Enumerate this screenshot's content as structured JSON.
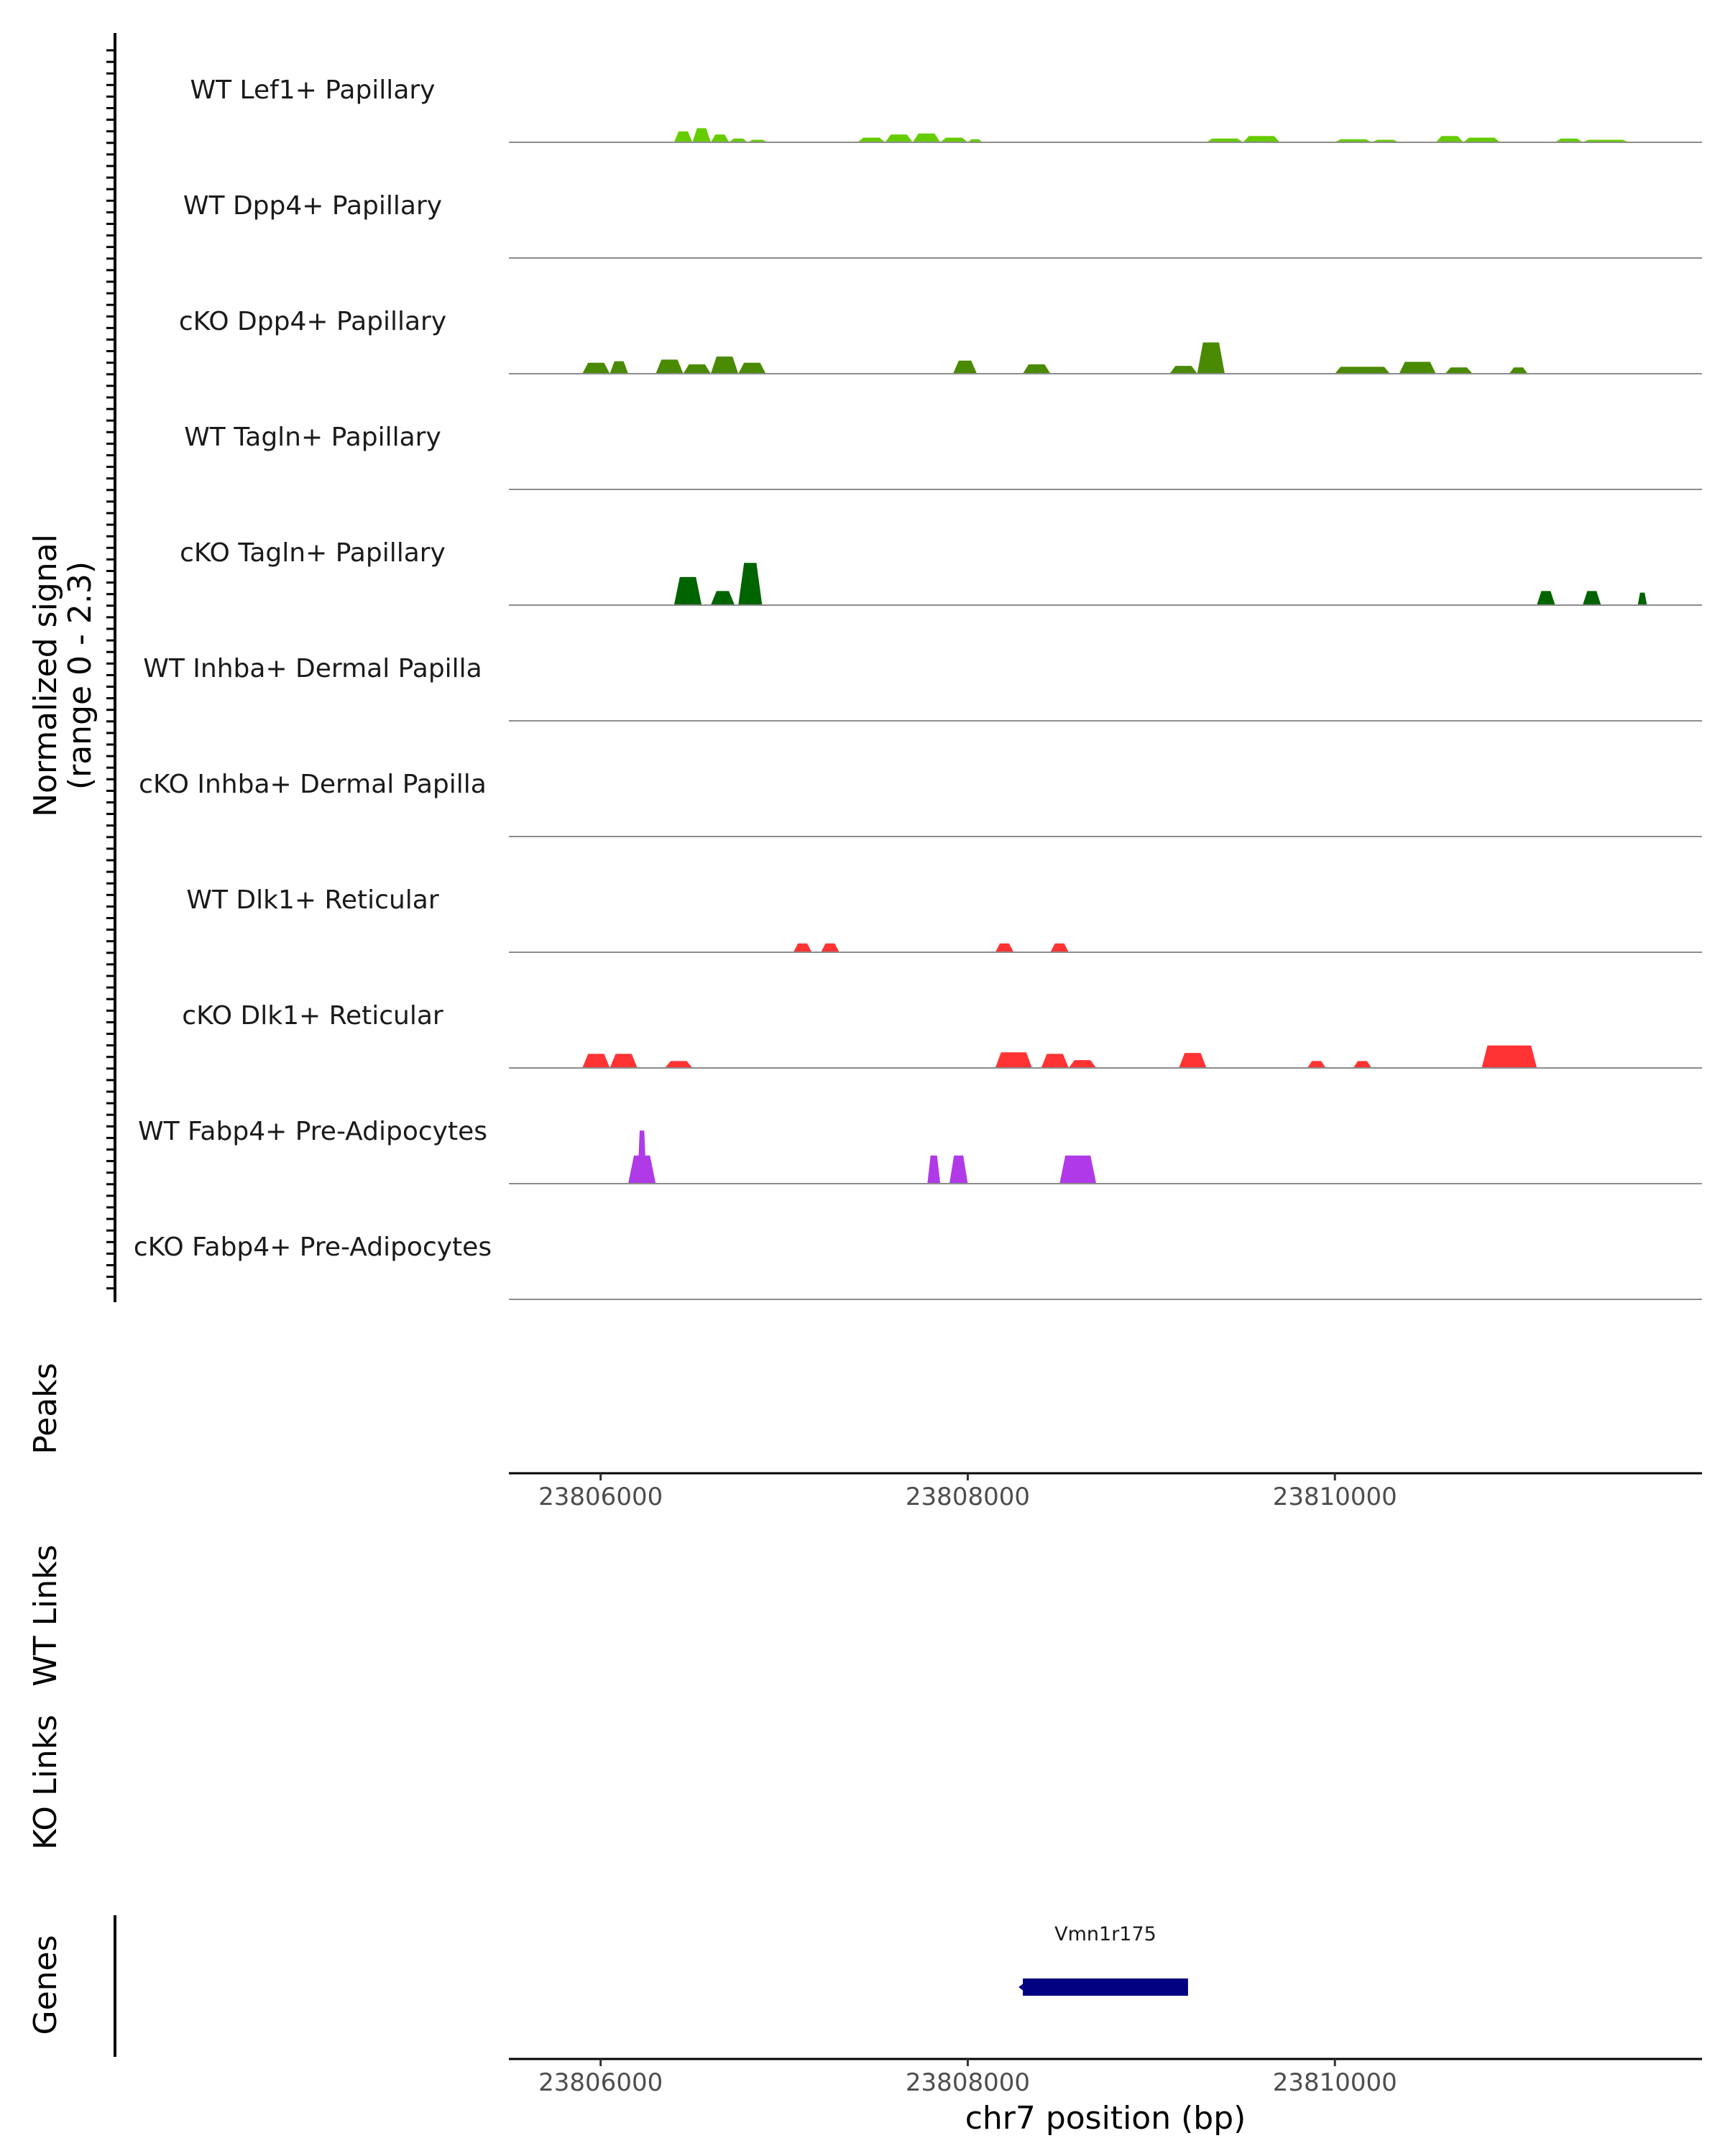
{
  "chart_data": {
    "type": "area",
    "chromosome": "chr7",
    "xlabel": "chr7 position (bp)",
    "xlim": [
      23805500,
      23812000
    ],
    "x_ticks": [
      23806000,
      23808000,
      23810000
    ],
    "x_tick_labels": [
      "23806000",
      "23808000",
      "23810000"
    ],
    "signal_axis_label": "Normalized signal",
    "signal_axis_sublabel": "(range 0 - 2.3)",
    "ylim": [
      0,
      2.3
    ],
    "tracks": [
      {
        "name": "WT Lef1+ Papillary",
        "color": "#66cc00",
        "blocks": [
          {
            "start": 23806400,
            "end": 23806500,
            "value": 0.35
          },
          {
            "start": 23806500,
            "end": 23806600,
            "value": 0.45
          },
          {
            "start": 23806600,
            "end": 23806700,
            "value": 0.25
          },
          {
            "start": 23806700,
            "end": 23806800,
            "value": 0.12
          },
          {
            "start": 23806800,
            "end": 23806910,
            "value": 0.08
          },
          {
            "start": 23807400,
            "end": 23807550,
            "value": 0.15
          },
          {
            "start": 23807550,
            "end": 23807700,
            "value": 0.25
          },
          {
            "start": 23807700,
            "end": 23807850,
            "value": 0.28
          },
          {
            "start": 23807850,
            "end": 23808000,
            "value": 0.15
          },
          {
            "start": 23808000,
            "end": 23808080,
            "value": 0.1
          },
          {
            "start": 23809300,
            "end": 23809500,
            "value": 0.12
          },
          {
            "start": 23809500,
            "end": 23809700,
            "value": 0.2
          },
          {
            "start": 23810000,
            "end": 23810200,
            "value": 0.1
          },
          {
            "start": 23810200,
            "end": 23810350,
            "value": 0.08
          },
          {
            "start": 23810550,
            "end": 23810700,
            "value": 0.2
          },
          {
            "start": 23810700,
            "end": 23810900,
            "value": 0.15
          },
          {
            "start": 23811200,
            "end": 23811350,
            "value": 0.12
          },
          {
            "start": 23811350,
            "end": 23811600,
            "value": 0.08
          }
        ]
      },
      {
        "name": "WT Dpp4+ Papillary",
        "color": "#4a8a00",
        "blocks": []
      },
      {
        "name": "cKO Dpp4+ Papillary",
        "color": "#4a8a00",
        "blocks": [
          {
            "start": 23805900,
            "end": 23806050,
            "value": 0.35
          },
          {
            "start": 23806050,
            "end": 23806150,
            "value": 0.4
          },
          {
            "start": 23806300,
            "end": 23806450,
            "value": 0.45
          },
          {
            "start": 23806450,
            "end": 23806600,
            "value": 0.3
          },
          {
            "start": 23806600,
            "end": 23806750,
            "value": 0.55
          },
          {
            "start": 23806750,
            "end": 23806900,
            "value": 0.35
          },
          {
            "start": 23807920,
            "end": 23808050,
            "value": 0.42
          },
          {
            "start": 23808300,
            "end": 23808450,
            "value": 0.3
          },
          {
            "start": 23809100,
            "end": 23809250,
            "value": 0.25
          },
          {
            "start": 23809250,
            "end": 23809400,
            "value": 1.0
          },
          {
            "start": 23810000,
            "end": 23810300,
            "value": 0.22
          },
          {
            "start": 23810350,
            "end": 23810550,
            "value": 0.38
          },
          {
            "start": 23810600,
            "end": 23810750,
            "value": 0.2
          },
          {
            "start": 23810950,
            "end": 23811050,
            "value": 0.2
          }
        ]
      },
      {
        "name": "WT Tagln+ Papillary",
        "color": "#006400",
        "blocks": []
      },
      {
        "name": "cKO Tagln+ Papillary",
        "color": "#006400",
        "blocks": [
          {
            "start": 23806400,
            "end": 23806550,
            "value": 0.9
          },
          {
            "start": 23806600,
            "end": 23806730,
            "value": 0.45
          },
          {
            "start": 23806750,
            "end": 23806880,
            "value": 1.35
          },
          {
            "start": 23811100,
            "end": 23811200,
            "value": 0.45
          },
          {
            "start": 23811350,
            "end": 23811450,
            "value": 0.45
          },
          {
            "start": 23811650,
            "end": 23811700,
            "value": 0.4
          }
        ]
      },
      {
        "name": "WT Inhba+ Dermal Papilla",
        "color": "#8b0000",
        "blocks": []
      },
      {
        "name": "cKO Inhba+ Dermal Papilla",
        "color": "#8b0000",
        "blocks": []
      },
      {
        "name": "WT Dlk1+ Reticular",
        "color": "#ff3333",
        "blocks": [
          {
            "start": 23807050,
            "end": 23807150,
            "value": 0.28
          },
          {
            "start": 23807200,
            "end": 23807300,
            "value": 0.28
          },
          {
            "start": 23808150,
            "end": 23808250,
            "value": 0.28
          },
          {
            "start": 23808450,
            "end": 23808550,
            "value": 0.28
          }
        ]
      },
      {
        "name": "cKO Dlk1+ Reticular",
        "color": "#ff3333",
        "blocks": [
          {
            "start": 23805900,
            "end": 23806050,
            "value": 0.45
          },
          {
            "start": 23806050,
            "end": 23806200,
            "value": 0.45
          },
          {
            "start": 23806350,
            "end": 23806500,
            "value": 0.22
          },
          {
            "start": 23808150,
            "end": 23808350,
            "value": 0.5
          },
          {
            "start": 23808400,
            "end": 23808550,
            "value": 0.45
          },
          {
            "start": 23808550,
            "end": 23808700,
            "value": 0.25
          },
          {
            "start": 23809150,
            "end": 23809300,
            "value": 0.48
          },
          {
            "start": 23809850,
            "end": 23809950,
            "value": 0.22
          },
          {
            "start": 23810100,
            "end": 23810200,
            "value": 0.22
          },
          {
            "start": 23810800,
            "end": 23811100,
            "value": 0.72
          }
        ]
      },
      {
        "name": "WT Fabp4+ Pre-Adipocytes",
        "color": "#b03ae8",
        "blocks": [
          {
            "start": 23806150,
            "end": 23806300,
            "value": 0.9
          },
          {
            "start": 23806200,
            "end": 23806250,
            "value": 1.7
          },
          {
            "start": 23807780,
            "end": 23807850,
            "value": 0.9
          },
          {
            "start": 23807900,
            "end": 23808000,
            "value": 0.9
          },
          {
            "start": 23808500,
            "end": 23808700,
            "value": 0.9
          }
        ]
      },
      {
        "name": "cKO Fabp4+ Pre-Adipocytes",
        "color": "#b03ae8",
        "blocks": []
      }
    ],
    "section_labels": {
      "peaks": "Peaks",
      "wt_links": "WT Links",
      "ko_links": "KO Links",
      "genes": "Genes"
    },
    "genes": [
      {
        "name": "Vmn1r175",
        "start": 23808300,
        "end": 23809200,
        "strand": "-",
        "color": "#000080"
      }
    ]
  }
}
